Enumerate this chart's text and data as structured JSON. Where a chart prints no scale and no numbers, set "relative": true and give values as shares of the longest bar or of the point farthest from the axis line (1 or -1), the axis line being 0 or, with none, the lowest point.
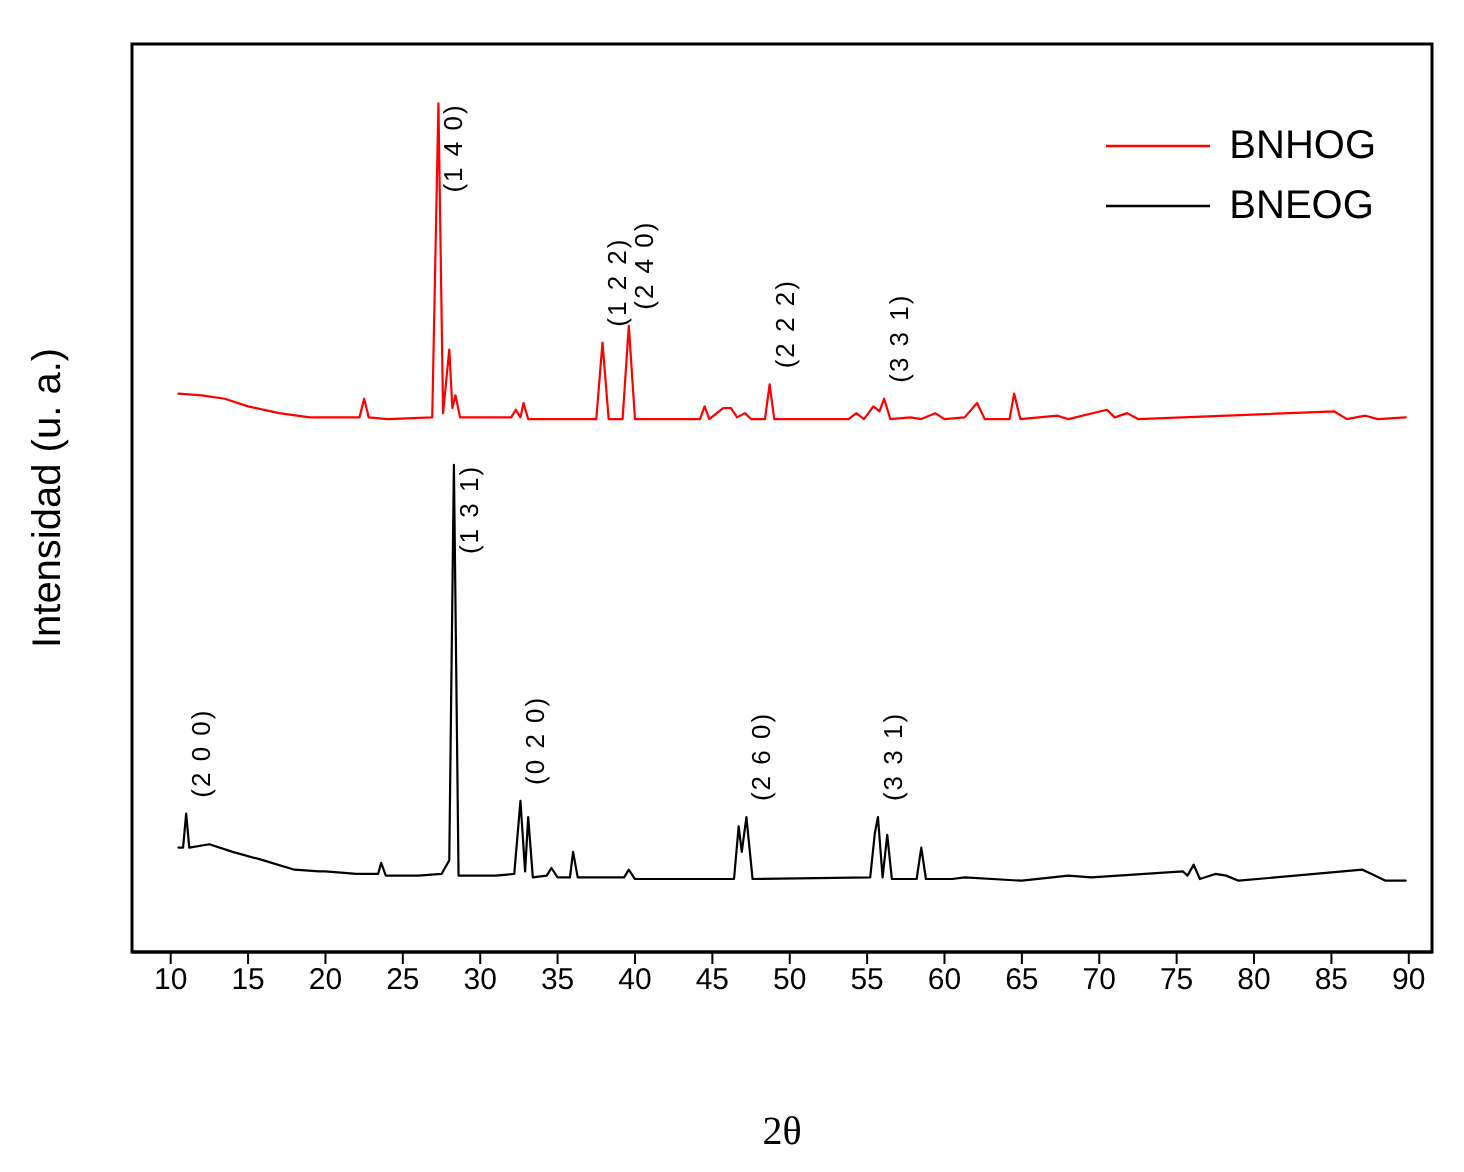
{
  "chart_data": {
    "type": "line",
    "relative": true,
    "xlabel": "2θ",
    "ylabel": "Intensidad (u. a.)",
    "xlim": [
      7.5,
      91.5
    ],
    "xticks": [
      10,
      15,
      20,
      25,
      30,
      35,
      40,
      45,
      50,
      55,
      60,
      65,
      70,
      75,
      80,
      85,
      90
    ],
    "legend": "top right",
    "marker": "none",
    "line_style": "solid",
    "tick_labels": "x",
    "series": [
      {
        "name": "BNHOG",
        "color": "#ff0000",
        "x": [
          10.5,
          12,
          13.5,
          15,
          17,
          19,
          22.2,
          22.5,
          22.8,
          24,
          26.9,
          27.3,
          27.6,
          28.0,
          28.2,
          28.4,
          28.7,
          32.0,
          32.3,
          32.6,
          32.8,
          33.1,
          37.5,
          37.9,
          38.3,
          39.2,
          39.6,
          40.0,
          44.2,
          44.5,
          44.8,
          45.7,
          46.2,
          46.6,
          47.1,
          47.5,
          48.4,
          48.7,
          49.0,
          53.8,
          54.3,
          54.8,
          55.4,
          55.8,
          56.1,
          56.5,
          57.8,
          58.5,
          59.4,
          60,
          61.3,
          62.1,
          62.6,
          64.2,
          64.5,
          64.9,
          67.3,
          68,
          70.5,
          71,
          71.8,
          72.5,
          85.2,
          86,
          87.2,
          88,
          89.8
        ],
        "values": [
          0.658,
          0.656,
          0.652,
          0.643,
          0.635,
          0.63,
          0.63,
          0.652,
          0.63,
          0.628,
          0.63,
          1.0,
          0.635,
          0.71,
          0.641,
          0.656,
          0.63,
          0.63,
          0.639,
          0.63,
          0.647,
          0.628,
          0.628,
          0.718,
          0.628,
          0.628,
          0.738,
          0.628,
          0.628,
          0.643,
          0.628,
          0.641,
          0.641,
          0.63,
          0.635,
          0.628,
          0.628,
          0.669,
          0.628,
          0.628,
          0.635,
          0.628,
          0.643,
          0.637,
          0.652,
          0.628,
          0.63,
          0.628,
          0.635,
          0.628,
          0.63,
          0.647,
          0.628,
          0.628,
          0.658,
          0.628,
          0.632,
          0.628,
          0.639,
          0.63,
          0.635,
          0.628,
          0.637,
          0.628,
          0.632,
          0.628,
          0.63
        ]
      },
      {
        "name": "BNEOG",
        "color": "#000000",
        "x": [
          10.5,
          10.8,
          11.0,
          11.2,
          12.5,
          14,
          16,
          18,
          19.6,
          20,
          22,
          23.4,
          23.6,
          23.9,
          26,
          27.5,
          28.0,
          28.3,
          28.6,
          31,
          32.2,
          32.6,
          32.9,
          33.1,
          33.4,
          34.3,
          34.6,
          35,
          35.8,
          36.0,
          36.3,
          39.3,
          39.6,
          40,
          46.4,
          46.7,
          46.9,
          47.2,
          47.6,
          55.2,
          55.5,
          55.7,
          56.0,
          56.3,
          56.6,
          58.2,
          58.5,
          58.8,
          60.5,
          61.3,
          65,
          68,
          69.5,
          75.4,
          75.7,
          76.1,
          76.5,
          77.5,
          78.2,
          79,
          87,
          87.6,
          88.5,
          89.8
        ],
        "values": [
          0.123,
          0.123,
          0.163,
          0.123,
          0.127,
          0.118,
          0.108,
          0.097,
          0.095,
          0.095,
          0.092,
          0.092,
          0.105,
          0.09,
          0.09,
          0.092,
          0.108,
          0.574,
          0.09,
          0.09,
          0.092,
          0.178,
          0.095,
          0.159,
          0.088,
          0.09,
          0.099,
          0.088,
          0.088,
          0.118,
          0.088,
          0.088,
          0.097,
          0.086,
          0.086,
          0.148,
          0.118,
          0.159,
          0.086,
          0.088,
          0.14,
          0.159,
          0.088,
          0.138,
          0.086,
          0.086,
          0.123,
          0.086,
          0.086,
          0.088,
          0.084,
          0.09,
          0.088,
          0.095,
          0.09,
          0.103,
          0.086,
          0.092,
          0.09,
          0.084,
          0.097,
          0.092,
          0.084,
          0.084
        ]
      }
    ],
    "annotations": [
      {
        "text": "(1 4 0)",
        "x": 27.3,
        "y": 1.0
      },
      {
        "text": "(1 2 2)",
        "x": 37.9,
        "y": 0.718
      },
      {
        "text": "(2 4 0)",
        "x": 39.6,
        "y": 0.738
      },
      {
        "text": "(2 2 2)",
        "x": 48.7,
        "y": 0.669
      },
      {
        "text": "(3 3 1)",
        "x": 56.1,
        "y": 0.652
      },
      {
        "text": "(2 0 0)",
        "x": 11.0,
        "y": 0.163
      },
      {
        "text": "(1 3 1)",
        "x": 28.3,
        "y": 0.574
      },
      {
        "text": "(0 2 0)",
        "x": 32.6,
        "y": 0.178
      },
      {
        "text": "(2 6 0)",
        "x": 47.2,
        "y": 0.159
      },
      {
        "text": "(3 3 1)",
        "x": 55.7,
        "y": 0.159
      }
    ]
  }
}
